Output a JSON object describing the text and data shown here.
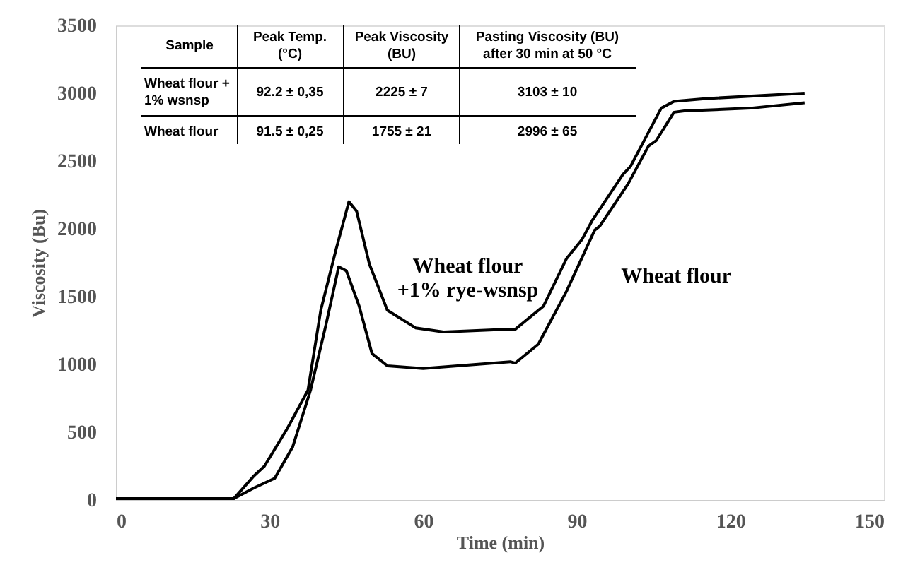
{
  "chart_data": {
    "type": "line",
    "xlabel": "Time (min)",
    "ylabel": "Viscosity (Bu)",
    "xlim": [
      0,
      150
    ],
    "xticks": [
      0,
      30,
      60,
      90,
      120,
      150
    ],
    "ylim": [
      0,
      3500
    ],
    "yticks": [
      0,
      500,
      1000,
      1500,
      2000,
      2500,
      3000,
      3500
    ],
    "grid": false,
    "marker": "none",
    "line_style": "solid",
    "series": [
      {
        "name": "Wheat flour\n+1% rye-wsnsp",
        "color": "#000000",
        "x": [
          0,
          10,
          23,
          27,
          29,
          33.5,
          37.5,
          40,
          43,
          45.5,
          47,
          49.5,
          53,
          58.5,
          64,
          77,
          78,
          83.5,
          88,
          91,
          93,
          99,
          100.5,
          106.5,
          109,
          115,
          134.5
        ],
        "values": [
          10,
          10,
          10,
          180,
          250,
          530,
          810,
          1400,
          1850,
          2200,
          2130,
          1740,
          1400,
          1270,
          1240,
          1260,
          1260,
          1430,
          1780,
          1920,
          2060,
          2400,
          2460,
          2890,
          2940,
          2960,
          3000
        ]
      },
      {
        "name": "Wheat flour",
        "color": "#000000",
        "x": [
          0,
          10,
          23,
          27,
          31,
          34.5,
          38,
          41,
          43.5,
          45,
          47.5,
          50,
          53,
          60,
          77,
          78,
          82.5,
          88,
          93.5,
          94.5,
          100,
          104,
          105.5,
          109,
          111,
          124,
          134.5
        ],
        "values": [
          10,
          10,
          10,
          90,
          160,
          390,
          810,
          1290,
          1720,
          1690,
          1430,
          1080,
          990,
          970,
          1020,
          1010,
          1150,
          1540,
          1990,
          2020,
          2330,
          2610,
          2650,
          2860,
          2870,
          2890,
          2930
        ]
      }
    ],
    "annotations": [
      "Sample",
      "Peak Temp.\n(°C)",
      "Peak Viscosity\n(BU)",
      "Pasting Viscosity (BU)\nafter 30 min at 50 °C",
      "Wheat flour +\n1% wsnsp",
      "92.2 ± 0,35",
      "2225 ± 7",
      "3103 ± 10",
      "Wheat flour",
      "91.5 ± 0,25",
      "1755 ± 21",
      "2996 ± 65"
    ]
  }
}
